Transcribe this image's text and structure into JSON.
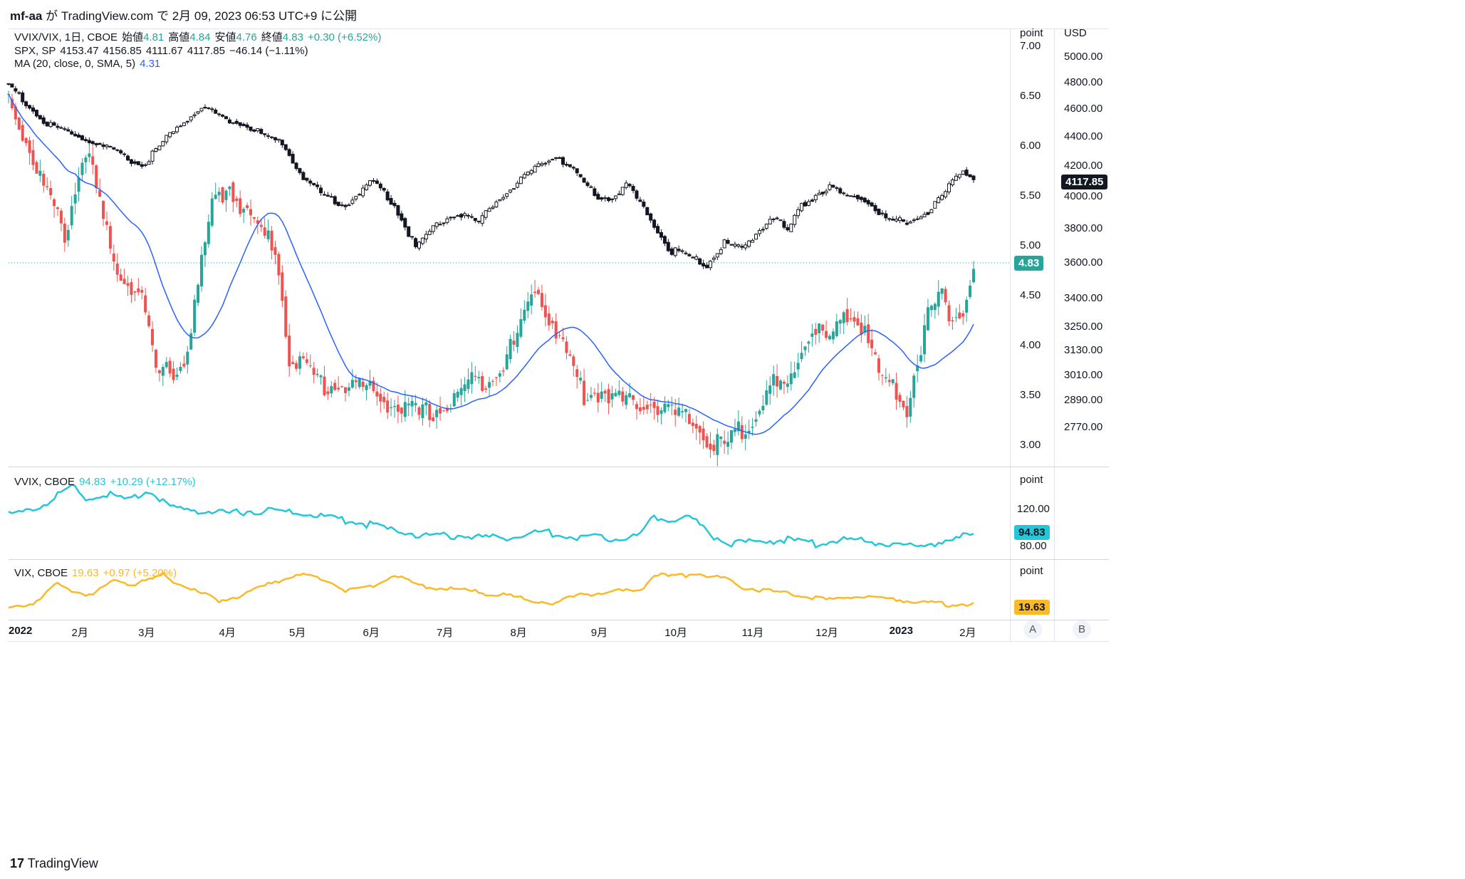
{
  "header": {
    "user": "mf-aa",
    "text": "が TradingView.com で 2月 09, 2023 06:53 UTC+9 に公開"
  },
  "legend": {
    "main": {
      "symbol": "VVIX/VIX, 1日, CBOE",
      "o_label": "始値",
      "o": "4.81",
      "h_label": "高値",
      "h": "4.84",
      "l_label": "安値",
      "l": "4.76",
      "c_label": "終値",
      "c": "4.83",
      "chg": "+0.30 (+6.52%)"
    },
    "spx": {
      "symbol": "SPX, SP",
      "o": "4153.47",
      "h": "4156.85",
      "l": "4111.67",
      "c": "4117.85",
      "chg": "−46.14 (−1.11%)"
    },
    "ma": {
      "label": "MA (20, close, 0, SMA, 5)",
      "value": "4.31"
    },
    "vvix": {
      "symbol": "VVIX, CBOE",
      "value": "94.83",
      "chg": "+10.29 (+12.17%)"
    },
    "vix": {
      "symbol": "VIX, CBOE",
      "value": "19.63",
      "chg": "+0.97 (+5.20%)"
    }
  },
  "axes": {
    "unit_point": "point",
    "unit_usd": "USD",
    "ratio_ticks": [
      "7.00",
      "6.50",
      "6.00",
      "5.50",
      "5.00",
      "4.50",
      "4.00",
      "3.50",
      "3.00"
    ],
    "usd_ticks": [
      "5000.00",
      "4800.00",
      "4600.00",
      "4400.00",
      "4200.00",
      "4000.00",
      "3800.00",
      "3600.00",
      "3400.00",
      "3250.00",
      "3130.00",
      "3010.00",
      "2890.00",
      "2770.00"
    ],
    "vvix_ticks": [
      "120.00",
      "80.00"
    ],
    "time_labels": [
      "2022",
      "2月",
      "3月",
      "4月",
      "5月",
      "6月",
      "7月",
      "8月",
      "9月",
      "10月",
      "11月",
      "12月",
      "2023",
      "2月"
    ]
  },
  "tags": {
    "spx_last": "4117.85",
    "ratio_last": "4.83",
    "vvix_last": "94.83",
    "vix_last": "19.63"
  },
  "buttons": {
    "a": "A",
    "b": "B"
  },
  "footer": {
    "brand": "TradingView",
    "logo": "17"
  },
  "colors": {
    "up": "#26a69a",
    "down": "#ef5350",
    "ma": "#2962ff",
    "vvix": "#26c6da",
    "vix": "#f9b928",
    "spx": "#131722"
  },
  "chart_data": [
    {
      "type": "candlestick",
      "title": "VVIX/VIX, 1日, CBOE",
      "ylim": [
        3.0,
        7.0
      ],
      "x_range": [
        "2022-01-03",
        "2023-02-08"
      ],
      "anchors_close": [
        [
          0,
          6.5
        ],
        [
          10,
          5.6
        ],
        [
          16,
          5.1
        ],
        [
          22,
          6.0
        ],
        [
          30,
          4.8
        ],
        [
          38,
          4.5
        ],
        [
          42,
          3.7
        ],
        [
          50,
          3.8
        ],
        [
          58,
          5.4
        ],
        [
          63,
          5.6
        ],
        [
          70,
          5.2
        ],
        [
          76,
          5.0
        ],
        [
          80,
          3.9
        ],
        [
          90,
          3.6
        ],
        [
          100,
          3.6
        ],
        [
          110,
          3.4
        ],
        [
          117,
          3.3
        ],
        [
          126,
          3.4
        ],
        [
          130,
          3.6
        ],
        [
          138,
          3.7
        ],
        [
          144,
          4.0
        ],
        [
          150,
          4.6
        ],
        [
          154,
          4.3
        ],
        [
          158,
          4.0
        ],
        [
          164,
          3.5
        ],
        [
          170,
          3.55
        ],
        [
          176,
          3.4
        ],
        [
          182,
          3.45
        ],
        [
          190,
          3.3
        ],
        [
          196,
          3.2
        ],
        [
          200,
          3.0
        ],
        [
          205,
          3.0
        ],
        [
          212,
          3.3
        ],
        [
          218,
          3.6
        ],
        [
          222,
          3.5
        ],
        [
          226,
          4.0
        ],
        [
          230,
          4.2
        ],
        [
          234,
          4.0
        ],
        [
          238,
          4.3
        ],
        [
          244,
          4.2
        ],
        [
          248,
          3.7
        ],
        [
          252,
          3.6
        ],
        [
          256,
          3.4
        ],
        [
          262,
          4.3
        ],
        [
          266,
          4.5
        ],
        [
          268,
          4.3
        ],
        [
          272,
          4.4
        ],
        [
          275,
          4.83
        ]
      ],
      "moving_average_20_close": "4.31"
    },
    {
      "type": "candlestick",
      "title": "SPX, SP",
      "ylim": [
        2770,
        5000
      ],
      "anchors_close": [
        [
          0,
          4790
        ],
        [
          10,
          4500
        ],
        [
          20,
          4400
        ],
        [
          30,
          4300
        ],
        [
          38,
          4200
        ],
        [
          45,
          4390
        ],
        [
          55,
          4620
        ],
        [
          62,
          4530
        ],
        [
          70,
          4450
        ],
        [
          78,
          4350
        ],
        [
          84,
          4130
        ],
        [
          90,
          4000
        ],
        [
          96,
          3950
        ],
        [
          104,
          4100
        ],
        [
          110,
          3950
        ],
        [
          116,
          3690
        ],
        [
          122,
          3830
        ],
        [
          128,
          3900
        ],
        [
          134,
          3840
        ],
        [
          140,
          4000
        ],
        [
          148,
          4140
        ],
        [
          156,
          4280
        ],
        [
          162,
          4140
        ],
        [
          168,
          4000
        ],
        [
          172,
          3990
        ],
        [
          176,
          4080
        ],
        [
          182,
          3900
        ],
        [
          188,
          3680
        ],
        [
          194,
          3640
        ],
        [
          199,
          3590
        ],
        [
          204,
          3710
        ],
        [
          210,
          3680
        ],
        [
          214,
          3800
        ],
        [
          218,
          3880
        ],
        [
          222,
          3780
        ],
        [
          226,
          3950
        ],
        [
          234,
          4070
        ],
        [
          238,
          4000
        ],
        [
          244,
          3990
        ],
        [
          250,
          3850
        ],
        [
          256,
          3840
        ],
        [
          262,
          3900
        ],
        [
          268,
          4060
        ],
        [
          272,
          4180
        ],
        [
          275,
          4117.85
        ]
      ]
    },
    {
      "type": "line",
      "title": "VVIX, CBOE",
      "ylim": [
        75,
        150
      ],
      "anchors": [
        [
          0,
          113
        ],
        [
          6,
          118
        ],
        [
          12,
          128
        ],
        [
          18,
          145
        ],
        [
          22,
          130
        ],
        [
          28,
          136
        ],
        [
          34,
          128
        ],
        [
          40,
          140
        ],
        [
          46,
          120
        ],
        [
          54,
          118
        ],
        [
          62,
          115
        ],
        [
          72,
          118
        ],
        [
          82,
          116
        ],
        [
          92,
          110
        ],
        [
          100,
          105
        ],
        [
          110,
          96
        ],
        [
          120,
          90
        ],
        [
          130,
          91
        ],
        [
          140,
          88
        ],
        [
          146,
          91
        ],
        [
          152,
          95
        ],
        [
          160,
          90
        ],
        [
          170,
          88
        ],
        [
          180,
          91
        ],
        [
          184,
          112
        ],
        [
          188,
          108
        ],
        [
          194,
          112
        ],
        [
          200,
          92
        ],
        [
          206,
          82
        ],
        [
          214,
          85
        ],
        [
          222,
          86
        ],
        [
          230,
          82
        ],
        [
          238,
          86
        ],
        [
          244,
          85
        ],
        [
          250,
          82
        ],
        [
          256,
          78
        ],
        [
          262,
          82
        ],
        [
          270,
          86
        ],
        [
          275,
          94.83
        ]
      ]
    },
    {
      "type": "line",
      "title": "VIX, CBOE",
      "ylim": [
        16,
        37
      ],
      "anchors": [
        [
          0,
          18
        ],
        [
          8,
          20
        ],
        [
          14,
          29
        ],
        [
          18,
          26
        ],
        [
          24,
          23
        ],
        [
          30,
          31
        ],
        [
          36,
          28
        ],
        [
          44,
          33
        ],
        [
          52,
          26
        ],
        [
          60,
          21
        ],
        [
          68,
          24
        ],
        [
          76,
          30
        ],
        [
          82,
          33
        ],
        [
          90,
          31
        ],
        [
          96,
          26
        ],
        [
          104,
          28
        ],
        [
          110,
          33
        ],
        [
          116,
          28
        ],
        [
          124,
          27
        ],
        [
          132,
          25
        ],
        [
          140,
          24
        ],
        [
          148,
          21
        ],
        [
          156,
          20
        ],
        [
          164,
          24
        ],
        [
          172,
          25
        ],
        [
          180,
          26
        ],
        [
          184,
          33
        ],
        [
          190,
          32
        ],
        [
          196,
          34
        ],
        [
          204,
          31
        ],
        [
          210,
          27
        ],
        [
          218,
          25
        ],
        [
          228,
          23
        ],
        [
          234,
          21
        ],
        [
          240,
          23
        ],
        [
          248,
          22
        ],
        [
          256,
          21
        ],
        [
          262,
          20
        ],
        [
          268,
          19
        ],
        [
          275,
          19.63
        ]
      ]
    }
  ]
}
